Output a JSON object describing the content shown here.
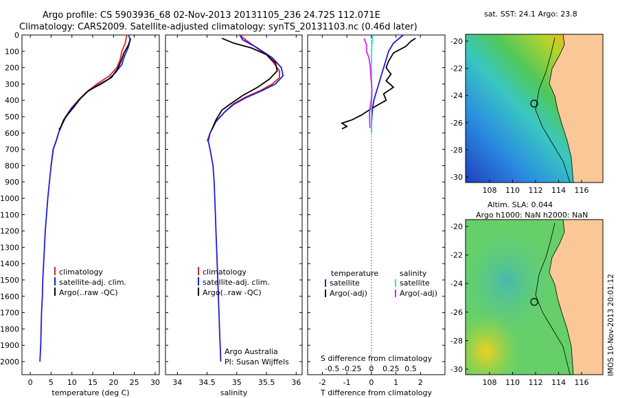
{
  "header": {
    "title_line1": "Argo profile: CS 5903936_68 02-Nov-2013 20131105_236 24.72S 112.071E",
    "title_line2": "Climatology: CARS2009. Satellite-adjusted climatology: synTS_20131103.nc (0.46d later)"
  },
  "colors": {
    "climatology": "#e02020",
    "satellite": "#1a1adc",
    "argo": "#000000",
    "salinity_satellite": "#20e0e0",
    "salinity_argo": "#e020e0"
  },
  "chart_data": [
    {
      "type": "line",
      "panel": "temperature",
      "xlabel": "temperature (deg C)",
      "xlim": [
        -2,
        31
      ],
      "ylim": [
        2080,
        0
      ],
      "yticks": [
        0,
        100,
        200,
        300,
        400,
        500,
        600,
        700,
        800,
        900,
        1000,
        1100,
        1200,
        1300,
        1400,
        1500,
        1600,
        1700,
        1800,
        1900,
        2000
      ],
      "xticks": [
        0,
        5,
        10,
        15,
        20,
        25,
        30
      ],
      "legend": [
        "climatology",
        "satellite-adj. clim.",
        "Argo(..raw -QC)"
      ],
      "series": [
        {
          "name": "climatology",
          "color": "#e02020",
          "points": [
            [
              23.2,
              0
            ],
            [
              22.8,
              50
            ],
            [
              22.0,
              100
            ],
            [
              21.6,
              150
            ],
            [
              20.8,
              200
            ],
            [
              19.0,
              250
            ],
            [
              16.0,
              300
            ],
            [
              13.5,
              350
            ],
            [
              11.5,
              400
            ],
            [
              9.8,
              450
            ],
            [
              8.5,
              500
            ],
            [
              7.5,
              550
            ],
            [
              6.8,
              600
            ],
            [
              6.2,
              650
            ],
            [
              5.5,
              700
            ],
            [
              5.0,
              800
            ]
          ]
        },
        {
          "name": "satellite-adj. clim.",
          "color": "#1a1adc",
          "points": [
            [
              23.6,
              0
            ],
            [
              24.0,
              30
            ],
            [
              23.5,
              80
            ],
            [
              22.6,
              130
            ],
            [
              22.0,
              180
            ],
            [
              20.5,
              230
            ],
            [
              18.8,
              270
            ],
            [
              16.0,
              310
            ],
            [
              13.6,
              350
            ],
            [
              11.6,
              400
            ],
            [
              9.9,
              450
            ],
            [
              8.6,
              500
            ],
            [
              7.6,
              550
            ],
            [
              6.8,
              600
            ],
            [
              6.2,
              650
            ],
            [
              5.5,
              700
            ],
            [
              5.0,
              800
            ],
            [
              4.6,
              900
            ],
            [
              4.2,
              1000
            ],
            [
              3.9,
              1100
            ],
            [
              3.6,
              1200
            ],
            [
              3.4,
              1300
            ],
            [
              3.2,
              1400
            ],
            [
              3.0,
              1500
            ],
            [
              2.9,
              1600
            ],
            [
              2.7,
              1700
            ],
            [
              2.6,
              1800
            ],
            [
              2.5,
              1900
            ],
            [
              2.3,
              2000
            ]
          ]
        },
        {
          "name": "Argo(..raw -QC)",
          "color": "#000000",
          "points": [
            [
              24.1,
              20
            ],
            [
              23.6,
              60
            ],
            [
              22.5,
              110
            ],
            [
              21.8,
              160
            ],
            [
              20.9,
              210
            ],
            [
              19.5,
              260
            ],
            [
              17.0,
              300
            ],
            [
              14.0,
              340
            ],
            [
              12.0,
              390
            ],
            [
              10.5,
              440
            ],
            [
              9.2,
              480
            ],
            [
              8.0,
              520
            ],
            [
              7.4,
              560
            ],
            [
              6.9,
              580
            ]
          ]
        }
      ]
    },
    {
      "type": "line",
      "panel": "salinity",
      "xlabel": "salinity",
      "xlim": [
        33.8,
        36.1
      ],
      "ylim": [
        2080,
        0
      ],
      "xticks": [
        34,
        34.5,
        35,
        35.5,
        36
      ],
      "legend": [
        "climatology",
        "satellite-adj. clim.",
        "Argo(..raw -QC)"
      ],
      "annotation": [
        "Argo Australia",
        "PI: Susan Wijffels"
      ],
      "series": [
        {
          "name": "climatology",
          "color": "#e02020",
          "points": [
            [
              35.05,
              0
            ],
            [
              35.15,
              30
            ],
            [
              35.3,
              70
            ],
            [
              35.5,
              120
            ],
            [
              35.62,
              170
            ],
            [
              35.72,
              220
            ],
            [
              35.72,
              260
            ],
            [
              35.6,
              300
            ],
            [
              35.4,
              340
            ],
            [
              35.15,
              380
            ],
            [
              34.95,
              420
            ],
            [
              34.8,
              470
            ],
            [
              34.65,
              530
            ],
            [
              34.55,
              600
            ],
            [
              34.5,
              650
            ]
          ]
        },
        {
          "name": "satellite-adj. clim.",
          "color": "#1a1adc",
          "points": [
            [
              35.05,
              0
            ],
            [
              35.1,
              30
            ],
            [
              35.35,
              80
            ],
            [
              35.6,
              140
            ],
            [
              35.75,
              200
            ],
            [
              35.78,
              250
            ],
            [
              35.65,
              300
            ],
            [
              35.4,
              345
            ],
            [
              35.15,
              385
            ],
            [
              34.95,
              425
            ],
            [
              34.8,
              470
            ],
            [
              34.65,
              530
            ],
            [
              34.55,
              600
            ],
            [
              34.52,
              650
            ],
            [
              34.55,
              700
            ],
            [
              34.6,
              800
            ],
            [
              34.62,
              900
            ],
            [
              34.63,
              1000
            ],
            [
              34.64,
              1100
            ],
            [
              34.65,
              1200
            ],
            [
              34.66,
              1300
            ],
            [
              34.67,
              1400
            ],
            [
              34.68,
              1500
            ],
            [
              34.69,
              1600
            ],
            [
              34.7,
              1700
            ],
            [
              34.71,
              1800
            ],
            [
              34.72,
              1900
            ],
            [
              34.73,
              2000
            ]
          ]
        },
        {
          "name": "Argo(..raw -QC)",
          "color": "#000000",
          "points": [
            [
              34.75,
              20
            ],
            [
              34.95,
              50
            ],
            [
              35.25,
              80
            ],
            [
              35.5,
              120
            ],
            [
              35.65,
              170
            ],
            [
              35.68,
              220
            ],
            [
              35.55,
              270
            ],
            [
              35.35,
              320
            ],
            [
              35.1,
              370
            ],
            [
              34.9,
              420
            ],
            [
              34.75,
              460
            ],
            [
              34.65,
              520
            ],
            [
              34.58,
              580
            ]
          ]
        }
      ]
    },
    {
      "type": "line",
      "panel": "difference",
      "xlabel": "T difference from climatology",
      "xlabel_top": "S difference from climatology",
      "xlim": [
        -2.6,
        3.0
      ],
      "ylim": [
        2080,
        0
      ],
      "xticks_bottom": [
        -2,
        -1,
        0,
        1,
        2
      ],
      "xticks_top": [
        "-0.5",
        "-0.25",
        "0",
        "0.25",
        "0.5"
      ],
      "legend_temperature": {
        "heading": "temperature",
        "items": [
          "satellite",
          "Argo(-adj)"
        ]
      },
      "legend_salinity": {
        "heading": "salinity",
        "items": [
          "satellite",
          "Argo(-adj)"
        ]
      },
      "series": [
        {
          "name": "temperature satellite",
          "color": "#1a1adc",
          "points": [
            [
              1.3,
              0
            ],
            [
              0.9,
              50
            ],
            [
              0.7,
              100
            ],
            [
              0.6,
              150
            ],
            [
              0.5,
              200
            ],
            [
              0.4,
              250
            ],
            [
              0.3,
              300
            ],
            [
              0.2,
              350
            ],
            [
              0.1,
              400
            ],
            [
              0.05,
              450
            ],
            [
              0.02,
              500
            ],
            [
              0.0,
              560
            ],
            [
              0.0,
              600
            ]
          ]
        },
        {
          "name": "temperature Argo(-adj)",
          "color": "#000000",
          "points": [
            [
              1.8,
              20
            ],
            [
              1.6,
              40
            ],
            [
              1.4,
              70
            ],
            [
              0.9,
              110
            ],
            [
              0.7,
              160
            ],
            [
              0.6,
              200
            ],
            [
              0.8,
              240
            ],
            [
              0.6,
              280
            ],
            [
              0.9,
              320
            ],
            [
              0.5,
              360
            ],
            [
              0.6,
              400
            ],
            [
              0.0,
              450
            ],
            [
              -0.4,
              490
            ],
            [
              -0.8,
              520
            ],
            [
              -1.2,
              540
            ],
            [
              -1.0,
              560
            ],
            [
              -1.2,
              575
            ]
          ]
        },
        {
          "name": "salinity satellite",
          "color": "#20e0e0",
          "points": [
            [
              0.05,
              0
            ],
            [
              0.02,
              60
            ],
            [
              0.0,
              120
            ],
            [
              0.0,
              200
            ],
            [
              0.01,
              280
            ],
            [
              0.02,
              360
            ],
            [
              0.0,
              450
            ],
            [
              0.0,
              520
            ],
            [
              0.0,
              600
            ]
          ]
        },
        {
          "name": "salinity Argo(-adj)",
          "color": "#e020e0",
          "points": [
            [
              -0.3,
              20
            ],
            [
              -0.2,
              60
            ],
            [
              -0.2,
              100
            ],
            [
              -0.1,
              140
            ],
            [
              -0.05,
              190
            ],
            [
              -0.03,
              240
            ],
            [
              0.0,
              290
            ],
            [
              0.02,
              340
            ],
            [
              0.0,
              390
            ],
            [
              -0.05,
              440
            ],
            [
              -0.08,
              480
            ],
            [
              -0.07,
              530
            ],
            [
              -0.06,
              570
            ]
          ]
        }
      ]
    }
  ],
  "maps": {
    "sst": {
      "title": "sat. SST: 24.1  Argo: 23.8",
      "lat_ticks": [
        "-20",
        "-22",
        "-24",
        "-26",
        "-28",
        "-30"
      ],
      "lon_ticks": [
        "108",
        "110",
        "112",
        "114",
        "116"
      ]
    },
    "sla": {
      "title_line1": "Altim. SLA: 0.044",
      "title_line2": "Argo h1000: NaN h2000: NaN",
      "lat_ticks": [
        "-20",
        "-22",
        "-24",
        "-26",
        "-28",
        "-30"
      ],
      "lon_ticks": [
        "108",
        "110",
        "112",
        "114",
        "116"
      ]
    },
    "float_position": {
      "lon": 112.071,
      "lat": -24.72
    }
  },
  "footer": {
    "timestamp": "IMOS 10-Nov-2013 20:01:12"
  }
}
